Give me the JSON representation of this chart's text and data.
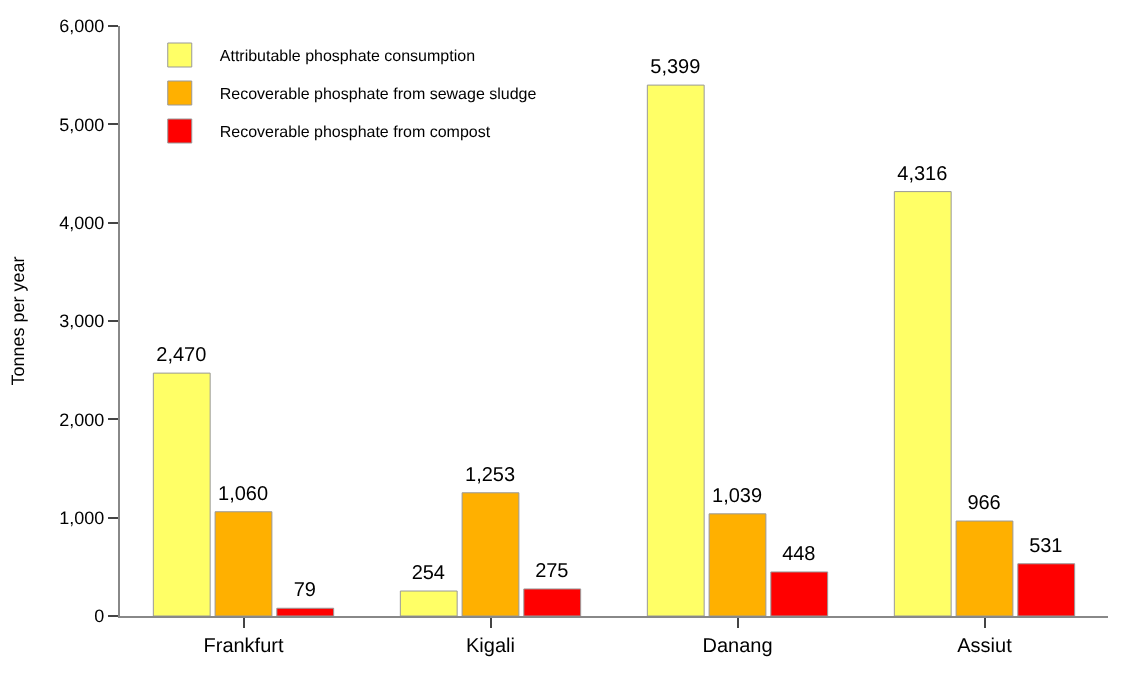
{
  "chart_data": {
    "type": "bar",
    "ylabel": "Tonnes per year",
    "categories": [
      "Frankfurt",
      "Kigali",
      "Danang",
      "Assiut"
    ],
    "series": [
      {
        "name": "Attributable phosphate consumption",
        "color": "#ffff66",
        "values": [
          2470,
          254,
          5399,
          4316
        ],
        "value_labels": [
          "2,470",
          "254",
          "5,399",
          "4,316"
        ]
      },
      {
        "name": "Recoverable phosphate from sewage sludge",
        "color": "#ffb000",
        "values": [
          1060,
          1253,
          1039,
          966
        ],
        "value_labels": [
          "1,060",
          "1,253",
          "1,039",
          "966"
        ]
      },
      {
        "name": "Recoverable phosphate from compost",
        "color": "#ff0000",
        "values": [
          79,
          275,
          448,
          531
        ],
        "value_labels": [
          "79",
          "275",
          "448",
          "531"
        ]
      }
    ],
    "ylim": [
      0,
      6000
    ],
    "yticks": [
      0,
      {
        "value": 1000,
        "label": "1,000"
      },
      {
        "value": 2000,
        "label": "2,000"
      },
      {
        "value": 3000,
        "label": "3,000"
      },
      {
        "value": 4000,
        "label": "4,000"
      },
      {
        "value": 5000,
        "label": "5,000"
      },
      {
        "value": 6000,
        "label": "6,000"
      }
    ],
    "grid": false,
    "legend": "top left"
  }
}
